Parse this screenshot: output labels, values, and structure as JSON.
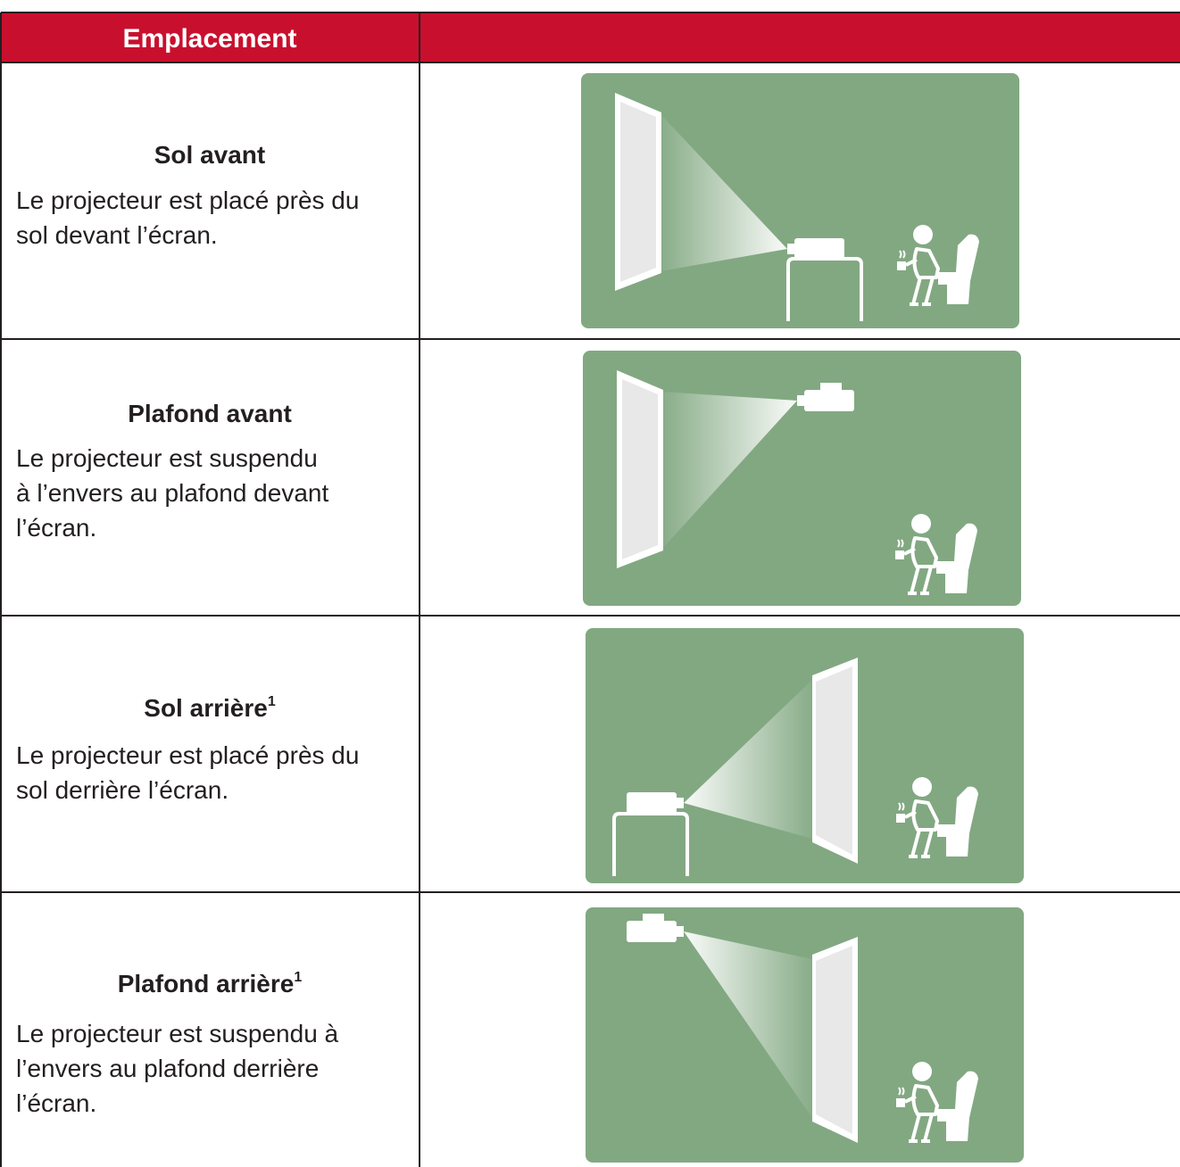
{
  "header": {
    "title": "Emplacement"
  },
  "rows": [
    {
      "title": "Sol avant",
      "lines": [
        "Le projecteur est placé près du",
        "sol devant l’écran."
      ]
    },
    {
      "title": "Plafond avant",
      "lines": [
        "Le projecteur est suspendu",
        "à l’envers au plafond devant",
        "l’écran."
      ]
    },
    {
      "title": "Sol arrière",
      "note": "1",
      "lines": [
        "Le projecteur est placé près du",
        "sol derrière l’écran."
      ]
    },
    {
      "title": "Plafond arrière",
      "note": "1",
      "lines": [
        "Le projecteur est suspendu à",
        "l’envers au plafond derrière",
        "l’écran."
      ]
    }
  ]
}
